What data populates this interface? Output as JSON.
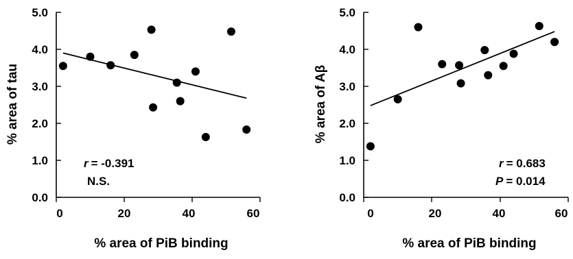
{
  "chart_data": [
    {
      "type": "scatter",
      "xlabel": "% area of PiB binding",
      "ylabel": "% area of tau",
      "xlim": [
        0,
        60
      ],
      "ylim": [
        0,
        5
      ],
      "x_ticks": [
        "0",
        "20",
        "40",
        "60"
      ],
      "y_ticks": [
        "0.0",
        "1.0",
        "2.0",
        "3.0",
        "4.0",
        "5.0"
      ],
      "points": [
        {
          "x": 2,
          "y": 3.55
        },
        {
          "x": 10,
          "y": 3.8
        },
        {
          "x": 16,
          "y": 3.57
        },
        {
          "x": 23,
          "y": 3.85
        },
        {
          "x": 28,
          "y": 4.53
        },
        {
          "x": 28.5,
          "y": 2.43
        },
        {
          "x": 35.5,
          "y": 3.1
        },
        {
          "x": 36.5,
          "y": 2.6
        },
        {
          "x": 41,
          "y": 3.4
        },
        {
          "x": 44,
          "y": 1.63
        },
        {
          "x": 51.5,
          "y": 4.48
        },
        {
          "x": 56,
          "y": 1.83
        }
      ],
      "fit_line": {
        "x": [
          2,
          56
        ],
        "y": [
          3.9,
          2.68
        ]
      },
      "annotation": {
        "r_symbol": "r",
        "r_value": "= -0.391",
        "significance": "N.S."
      }
    },
    {
      "type": "scatter",
      "xlabel": "% area of PiB binding",
      "ylabel": "% area of Aβ",
      "xlim": [
        0,
        60
      ],
      "ylim": [
        0,
        5
      ],
      "x_ticks": [
        "0",
        "20",
        "40",
        "60"
      ],
      "y_ticks": [
        "0.0",
        "1.0",
        "2.0",
        "3.0",
        "4.0",
        "5.0"
      ],
      "points": [
        {
          "x": 2,
          "y": 1.38
        },
        {
          "x": 10,
          "y": 2.65
        },
        {
          "x": 16,
          "y": 4.6
        },
        {
          "x": 23,
          "y": 3.6
        },
        {
          "x": 28,
          "y": 3.57
        },
        {
          "x": 28.5,
          "y": 3.08
        },
        {
          "x": 35.5,
          "y": 3.98
        },
        {
          "x": 36.5,
          "y": 3.3
        },
        {
          "x": 41,
          "y": 3.55
        },
        {
          "x": 44,
          "y": 3.88
        },
        {
          "x": 51.5,
          "y": 4.63
        },
        {
          "x": 56,
          "y": 4.2
        }
      ],
      "fit_line": {
        "x": [
          2,
          56
        ],
        "y": [
          2.48,
          4.48
        ]
      },
      "annotation": {
        "r_symbol": "r",
        "r_value": "= 0.683",
        "p_symbol": "P",
        "p_value": "= 0.014"
      }
    }
  ]
}
